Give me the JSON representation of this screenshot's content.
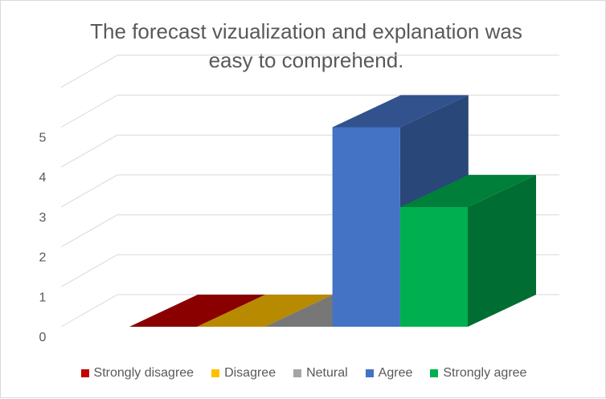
{
  "chart_data": {
    "type": "bar",
    "title": "The forecast vizualization and explanation was easy to comprehend.",
    "categories": [
      "Strongly disagree",
      "Disagree",
      "Netural",
      "Agree",
      "Strongly agree"
    ],
    "values": [
      0,
      0,
      0,
      5,
      3
    ],
    "colors": [
      "#c00000",
      "#ffc000",
      "#a5a5a5",
      "#4472c4",
      "#00b050"
    ],
    "ylim": [
      0,
      6
    ],
    "yticks": [
      0,
      1,
      2,
      3,
      4,
      5
    ],
    "grid": true,
    "legend_position": "bottom",
    "style": "3d-column"
  }
}
